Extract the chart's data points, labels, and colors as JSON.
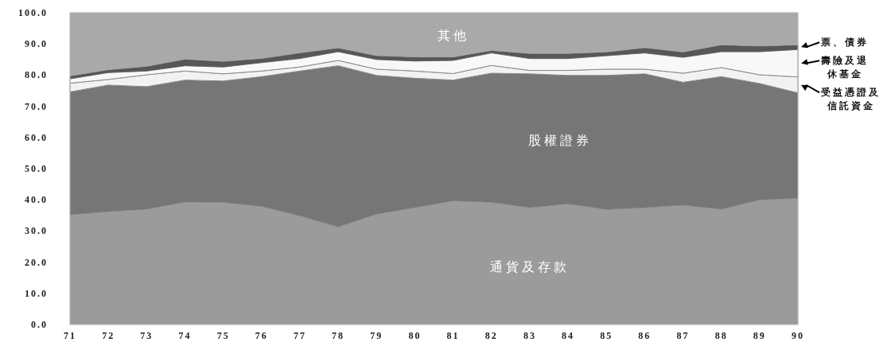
{
  "chart_data": {
    "type": "area",
    "stacked": true,
    "categories": [
      "71",
      "72",
      "73",
      "74",
      "75",
      "76",
      "77",
      "78",
      "79",
      "80",
      "81",
      "82",
      "83",
      "84",
      "85",
      "86",
      "87",
      "88",
      "89",
      "90"
    ],
    "ylim": [
      0,
      100
    ],
    "yticks": [
      {
        "value": 0,
        "label": "0.0"
      },
      {
        "value": 10,
        "label": "10.0"
      },
      {
        "value": 20,
        "label": "20.0"
      },
      {
        "value": 30,
        "label": "30.0"
      },
      {
        "value": 40,
        "label": "40.0"
      },
      {
        "value": 50,
        "label": "50.0"
      },
      {
        "value": 60,
        "label": "60.0"
      },
      {
        "value": 70,
        "label": "70.0"
      },
      {
        "value": 80,
        "label": "80.0"
      },
      {
        "value": 90,
        "label": "90.0"
      },
      {
        "value": 100,
        "label": "100.0"
      }
    ],
    "series": [
      {
        "name": "通貨及存款",
        "color": "#9b9b9b",
        "values": [
          35.2,
          36.2,
          37,
          39.3,
          39.2,
          37.9,
          34.9,
          31.3,
          35.4,
          37.5,
          39.7,
          39.2,
          37.5,
          38.7,
          36.9,
          37.5,
          38.3,
          37,
          40,
          40.5
        ]
      },
      {
        "name": "股權證券",
        "color": "#767676",
        "values": [
          39.4,
          40.6,
          39.3,
          39.1,
          38.9,
          41.6,
          46.4,
          51.7,
          44.5,
          41.5,
          38.7,
          41.4,
          42.9,
          41.2,
          43,
          42.9,
          39.4,
          42.5,
          37.3,
          33.8
        ]
      },
      {
        "name": "受益憑證及信託資金",
        "color": "#f2f2f2",
        "values": [
          2.8,
          1.8,
          3.8,
          2.9,
          2.3,
          1.8,
          1.3,
          1.7,
          2,
          2.3,
          2.1,
          2.5,
          1.1,
          1.6,
          2,
          1.5,
          2.9,
          2.9,
          2.8,
          5.1
        ]
      },
      {
        "name": "壽險及退休基金",
        "color": "#f8f8f8",
        "values": [
          1.4,
          2.2,
          1.2,
          1.7,
          2.2,
          2.7,
          2.7,
          2.8,
          3.1,
          3.2,
          4.2,
          4,
          3.8,
          3.8,
          4.3,
          5.2,
          5.1,
          5.1,
          7.4,
          8.8
        ]
      },
      {
        "name": "票、債券",
        "color": "#575757",
        "values": [
          0.9,
          0.9,
          1.5,
          2.1,
          1.8,
          1.3,
          1.8,
          1.2,
          1.2,
          1.3,
          1.1,
          0.8,
          1.6,
          1.6,
          1.2,
          1.7,
          1.7,
          2.2,
          1.8,
          1.5
        ]
      },
      {
        "name": "其他",
        "color": "#a9a9a9",
        "values": [
          20.3,
          18.3,
          17.2,
          14.9,
          15.6,
          14.7,
          12.9,
          11.3,
          13.8,
          14.2,
          14.2,
          12.1,
          13.1,
          13.1,
          12.6,
          11.2,
          12.6,
          10.3,
          10.7,
          10.3
        ]
      }
    ]
  }
}
